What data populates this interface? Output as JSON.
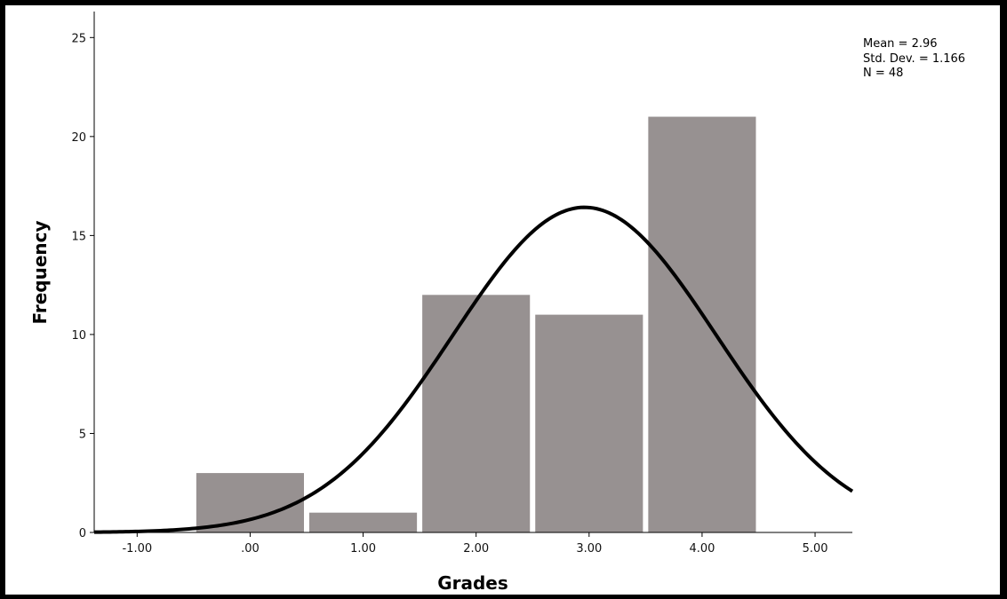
{
  "chart_data": {
    "type": "bar",
    "subtype": "histogram",
    "xlabel": "Grades",
    "ylabel": "Frequency",
    "x_ticks": [
      "-1.00",
      ".00",
      "1.00",
      "2.00",
      "3.00",
      "4.00",
      "5.00"
    ],
    "x_tick_values": [
      -1,
      0,
      1,
      2,
      3,
      4,
      5
    ],
    "y_ticks": [
      "0",
      "5",
      "10",
      "15",
      "20",
      "25"
    ],
    "y_tick_values": [
      0,
      5,
      10,
      15,
      20,
      25
    ],
    "xlim": [
      -1.38,
      5.33
    ],
    "ylim": [
      0,
      26
    ],
    "bins": [
      {
        "center": 0,
        "width": 1,
        "count": 3
      },
      {
        "center": 1,
        "width": 1,
        "count": 1
      },
      {
        "center": 2,
        "width": 1,
        "count": 12
      },
      {
        "center": 3,
        "width": 1,
        "count": 11
      },
      {
        "center": 4,
        "width": 1,
        "count": 21
      }
    ],
    "normal_curve": {
      "mean": 2.96,
      "std": 1.166,
      "n": 48,
      "bin_width": 1
    },
    "stats": {
      "mean_label": "Mean = 2.96",
      "std_label": "Std. Dev. = 1.166",
      "n_label": "N = 48"
    },
    "colors": {
      "bar_fill": "#979191",
      "bar_stroke": "#ffffff",
      "curve": "#000000",
      "axis": "#000000"
    },
    "grid": false,
    "legend": "top-right"
  }
}
